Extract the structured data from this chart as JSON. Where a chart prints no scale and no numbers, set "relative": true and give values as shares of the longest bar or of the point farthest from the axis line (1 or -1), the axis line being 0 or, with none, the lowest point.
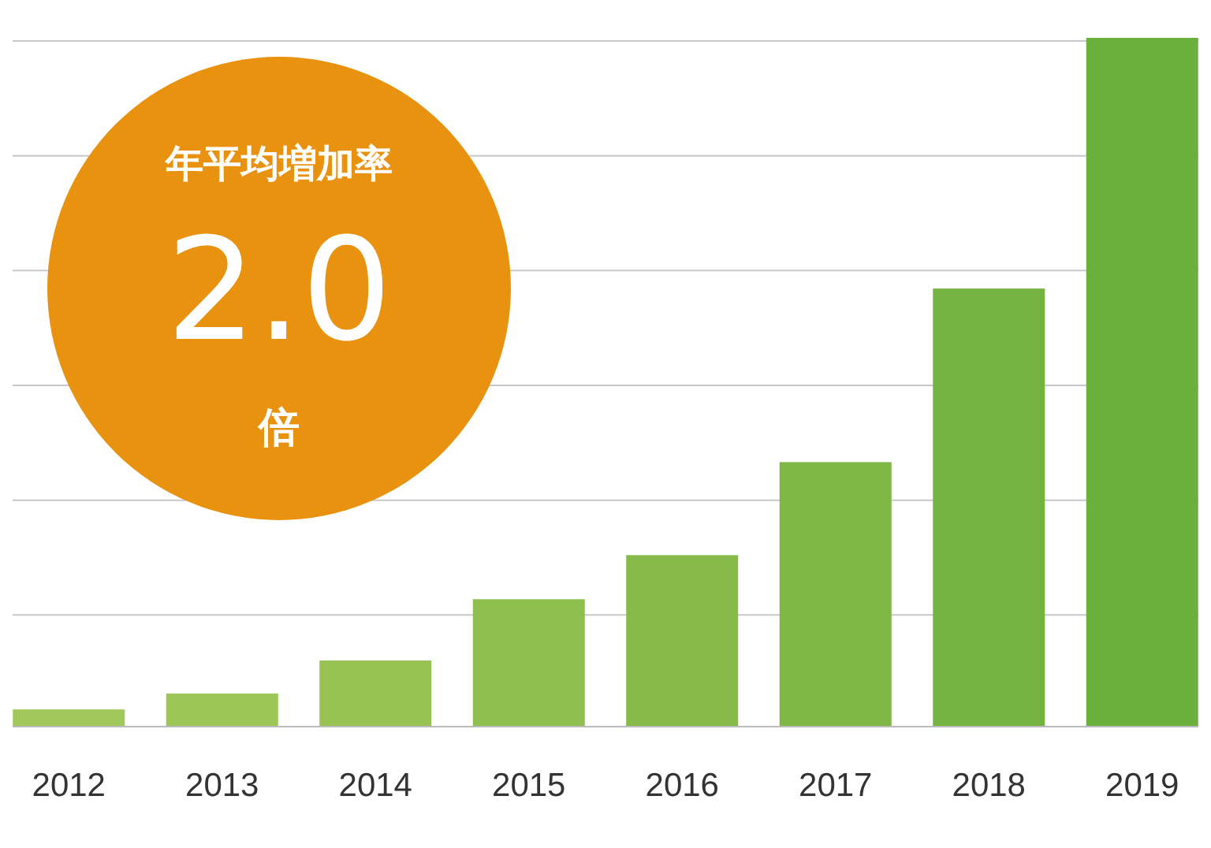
{
  "chart_data": {
    "type": "bar",
    "relative": true,
    "categories": [
      "2012",
      "2013",
      "2014",
      "2015",
      "2016",
      "2017",
      "2018",
      "2019"
    ],
    "values": [
      0.025,
      0.048,
      0.096,
      0.185,
      0.249,
      0.384,
      0.636,
      1
    ],
    "colors": [
      "#a0c85a",
      "#9cc656",
      "#97c352",
      "#8fbf4e",
      "#87bb49",
      "#7fb745",
      "#75b340",
      "#6bb03b"
    ],
    "grid": "y",
    "annotations": [
      "年平均増加率",
      "2.0",
      "倍"
    ]
  }
}
